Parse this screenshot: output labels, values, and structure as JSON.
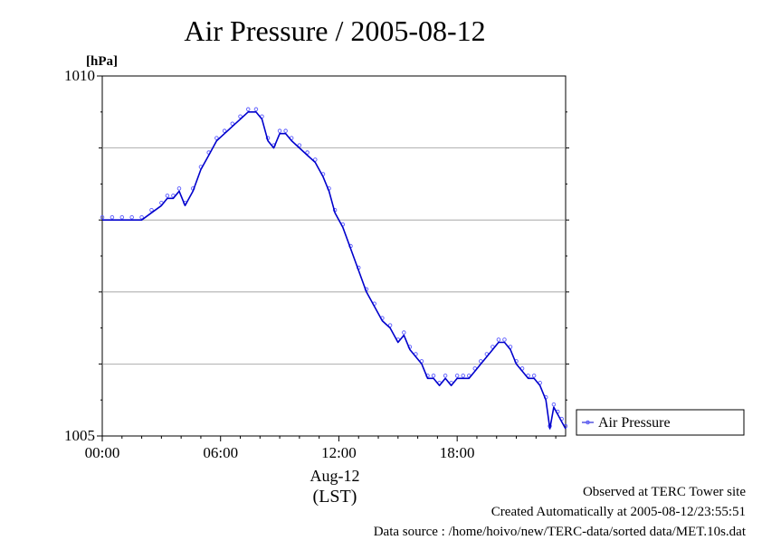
{
  "chart_data": {
    "type": "scatter",
    "title": "Air Pressure / 2005-08-12",
    "ylabel": "[hPa]",
    "xlabel": "(LST)",
    "date_label": "Aug-12",
    "ylim": [
      1005,
      1010
    ],
    "xlim": [
      0,
      23.5
    ],
    "y_ticks": [
      {
        "value": 1005,
        "label": "1005"
      },
      {
        "value": 1010,
        "label": "1010"
      }
    ],
    "y_gridlines": [
      1006,
      1007,
      1008,
      1009
    ],
    "x_ticks": [
      {
        "value": 0,
        "label": "00:00"
      },
      {
        "value": 6,
        "label": "06:00"
      },
      {
        "value": 12,
        "label": "12:00"
      },
      {
        "value": 18,
        "label": "18:00"
      }
    ],
    "grid": "horizontal",
    "legend_position": "right",
    "series": [
      {
        "name": "Air Pressure",
        "color": "#0000cc",
        "marker_color": "#5a5aff",
        "x": [
          0,
          0.5,
          1,
          1.5,
          2,
          2.5,
          3,
          3.3,
          3.6,
          3.9,
          4.2,
          4.6,
          5,
          5.4,
          5.8,
          6.2,
          6.6,
          7,
          7.4,
          7.8,
          8.1,
          8.4,
          8.7,
          9,
          9.3,
          9.6,
          10,
          10.4,
          10.8,
          11.2,
          11.5,
          11.8,
          12.2,
          12.6,
          13,
          13.4,
          13.8,
          14.2,
          14.6,
          15,
          15.3,
          15.6,
          15.9,
          16.2,
          16.5,
          16.8,
          17.1,
          17.4,
          17.7,
          18,
          18.3,
          18.6,
          18.9,
          19.2,
          19.5,
          19.8,
          20.1,
          20.4,
          20.7,
          21,
          21.3,
          21.6,
          21.9,
          22.2,
          22.5,
          22.7,
          22.9,
          23.1,
          23.3,
          23.5
        ],
        "y": [
          1008.0,
          1008.0,
          1008.0,
          1008.0,
          1008.0,
          1008.1,
          1008.2,
          1008.3,
          1008.3,
          1008.4,
          1008.2,
          1008.4,
          1008.7,
          1008.9,
          1009.1,
          1009.2,
          1009.3,
          1009.4,
          1009.5,
          1009.5,
          1009.4,
          1009.1,
          1009.0,
          1009.2,
          1009.2,
          1009.1,
          1009.0,
          1008.9,
          1008.8,
          1008.6,
          1008.4,
          1008.1,
          1007.9,
          1007.6,
          1007.3,
          1007.0,
          1006.8,
          1006.6,
          1006.5,
          1006.3,
          1006.4,
          1006.2,
          1006.1,
          1006.0,
          1005.8,
          1005.8,
          1005.7,
          1005.8,
          1005.7,
          1005.8,
          1005.8,
          1005.8,
          1005.9,
          1006.0,
          1006.1,
          1006.2,
          1006.3,
          1006.3,
          1006.2,
          1006.0,
          1005.9,
          1005.8,
          1005.8,
          1005.7,
          1005.5,
          1005.1,
          1005.4,
          1005.3,
          1005.2,
          1005.1
        ]
      }
    ]
  },
  "footer": {
    "line1": "Observed at TERC Tower site",
    "line2": "Created Automatically at 2005-08-12/23:55:51",
    "line3": "Data source : /home/hoivo/new/TERC-data/sorted  data/MET.10s.dat"
  }
}
